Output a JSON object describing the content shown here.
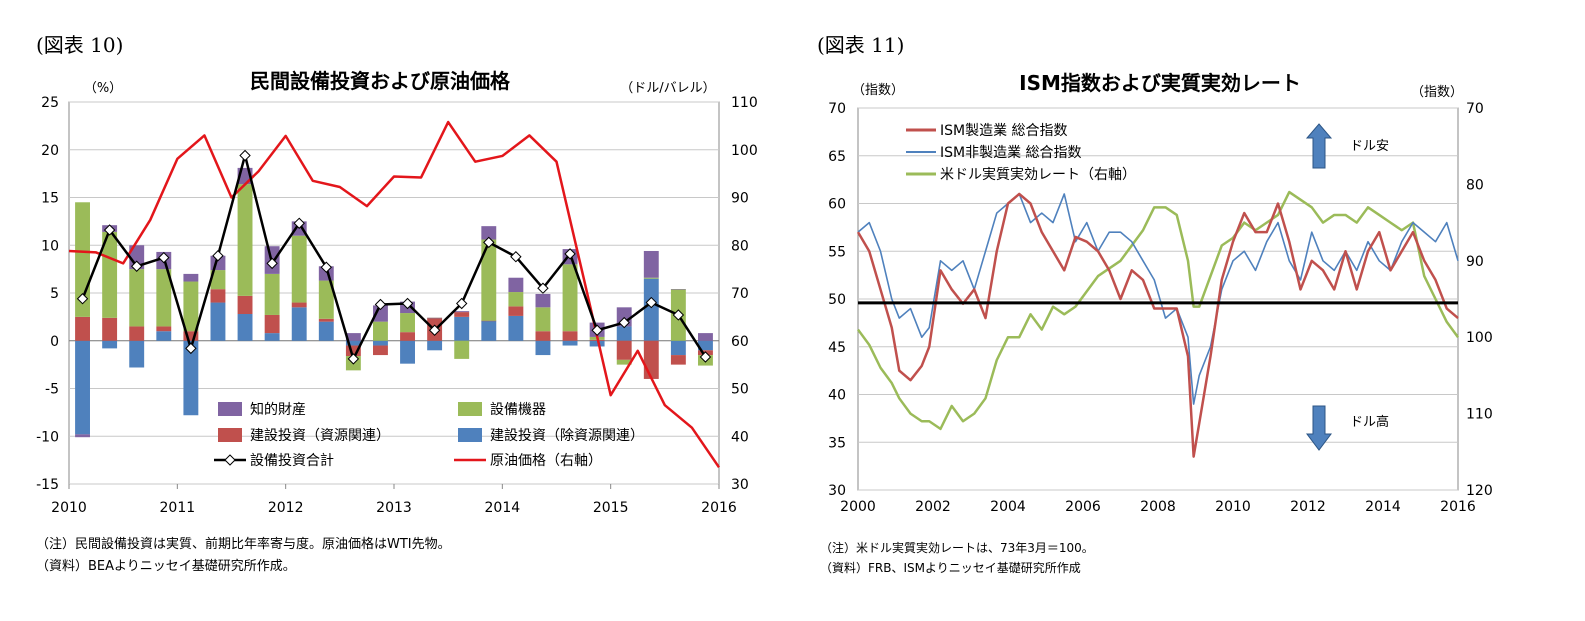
{
  "chart_data": [
    {
      "type": "bar",
      "figure_label": "(図表 10)",
      "title": "民間設備投資および原油価格",
      "ylabel_left": "（%）",
      "ylabel_right": "（ドル/バレル）",
      "ylim": [
        -15,
        25
      ],
      "y_ticks": [
        "25",
        "20",
        "15",
        "10",
        "5",
        "0",
        "-5",
        "-10",
        "-15"
      ],
      "y2lim": [
        30,
        110
      ],
      "y2_ticks": [
        "110",
        "100",
        "90",
        "80",
        "70",
        "60",
        "50",
        "40",
        "30"
      ],
      "x_ticks": [
        "2010",
        "2011",
        "2012",
        "2013",
        "2014",
        "2015",
        "2016"
      ],
      "categories": [
        "2010Q1",
        "2010Q2",
        "2010Q3",
        "2010Q4",
        "2011Q1",
        "2011Q2",
        "2011Q3",
        "2011Q4",
        "2012Q1",
        "2012Q2",
        "2012Q3",
        "2012Q4",
        "2013Q1",
        "2013Q2",
        "2013Q3",
        "2013Q4",
        "2014Q1",
        "2014Q2",
        "2014Q3",
        "2014Q4",
        "2015Q1",
        "2015Q2",
        "2015Q3",
        "2015Q4"
      ],
      "legend": {
        "intellectual": "知的財産",
        "equipment": "設備機器",
        "struct_res": "建設投資（資源関連）",
        "struct_ex": "建設投資（除資源関連）",
        "total": "設備投資合計",
        "oil": "原油価格（右軸）"
      },
      "colors": {
        "intellectual": "#8064a2",
        "equipment": "#9bbb59",
        "struct_res": "#c0504d",
        "struct_ex": "#4f81bd",
        "total": "#000000",
        "oil": "#e3161b"
      },
      "series": {
        "struct_ex": [
          -9.8,
          -0.8,
          -2.8,
          1.0,
          -7.8,
          4.0,
          2.8,
          0.8,
          3.5,
          2.0,
          -0.5,
          -0.5,
          -2.4,
          -1.0,
          2.5,
          2.1,
          2.6,
          -1.5,
          -0.5,
          -0.6,
          1.5,
          6.5,
          -1.5,
          -1.0
        ],
        "struct_res": [
          2.5,
          2.4,
          1.5,
          0.5,
          1.0,
          1.4,
          1.9,
          1.9,
          0.5,
          0.3,
          -1.1,
          -1.0,
          0.9,
          2.4,
          0.5,
          0.0,
          1.0,
          1.0,
          1.0,
          0.1,
          -2.0,
          -4.0,
          -1.0,
          -0.5
        ],
        "equipment": [
          12.0,
          9.0,
          6.0,
          6.0,
          5.2,
          2.0,
          11.7,
          4.3,
          7.0,
          4.0,
          -1.5,
          2.0,
          2.0,
          0.0,
          -1.9,
          8.5,
          1.5,
          2.5,
          7.0,
          0.3,
          -0.5,
          0.1,
          5.4,
          -1.1
        ],
        "intellectual": [
          -0.3,
          0.7,
          2.5,
          1.8,
          0.8,
          1.5,
          1.7,
          2.9,
          1.5,
          1.5,
          0.8,
          1.7,
          1.2,
          0.0,
          0.1,
          1.4,
          1.5,
          1.4,
          1.6,
          1.5,
          2.0,
          2.8,
          0.0,
          0.8
        ],
        "total": [
          4.4,
          11.6,
          7.8,
          8.7,
          -0.8,
          8.9,
          19.4,
          8.1,
          12.3,
          7.7,
          -1.9,
          3.8,
          3.9,
          1.1,
          3.9,
          10.3,
          8.8,
          5.5,
          9.1,
          1.1,
          1.9,
          4.0,
          2.7,
          -1.7
        ],
        "oil": [
          78.8,
          78.5,
          76.2,
          85.3,
          98.1,
          103.0,
          90.0,
          95.5,
          102.9,
          93.5,
          92.2,
          88.2,
          94.4,
          94.2,
          105.8,
          97.5,
          98.7,
          103.0,
          97.5,
          73.2,
          48.6,
          57.9,
          46.5,
          41.8,
          33.5
        ]
      }
    },
    {
      "type": "line",
      "figure_label": "(図表 11)",
      "title": "ISM指数および実質実効レート",
      "ylabel_left": "（指数）",
      "ylabel_right": "（指数）",
      "ylim": [
        30,
        70
      ],
      "y_ticks": [
        "70",
        "65",
        "60",
        "55",
        "50",
        "45",
        "40",
        "35",
        "30"
      ],
      "y2lim": [
        70,
        120
      ],
      "y2_inverted": true,
      "y2_ticks": [
        "70",
        "80",
        "90",
        "100",
        "110",
        "120"
      ],
      "xlim": [
        2000,
        2016
      ],
      "x_ticks": [
        "2000",
        "2002",
        "2004",
        "2006",
        "2008",
        "2010",
        "2012",
        "2014",
        "2016"
      ],
      "reference_line": 50,
      "annotations": {
        "up": "ドル安",
        "down": "ドル高"
      },
      "legend": [
        "ISM製造業 総合指数",
        "ISM非製造業 総合指数",
        "米ドル実質実効レート（右軸）"
      ],
      "colors": [
        "#c0504d",
        "#4f81bd",
        "#9bbb59"
      ],
      "series": [
        {
          "name": "ISM製造業 総合指数",
          "x": [
            2000.0,
            2000.3,
            2000.6,
            2000.9,
            2001.1,
            2001.4,
            2001.7,
            2001.9,
            2002.2,
            2002.5,
            2002.8,
            2003.1,
            2003.4,
            2003.7,
            2004.0,
            2004.3,
            2004.6,
            2004.9,
            2005.2,
            2005.5,
            2005.8,
            2006.1,
            2006.4,
            2006.7,
            2007.0,
            2007.3,
            2007.6,
            2007.9,
            2008.2,
            2008.5,
            2008.8,
            2008.95,
            2009.1,
            2009.4,
            2009.7,
            2010.0,
            2010.3,
            2010.6,
            2010.9,
            2011.2,
            2011.5,
            2011.8,
            2012.1,
            2012.4,
            2012.7,
            2013.0,
            2013.3,
            2013.6,
            2013.9,
            2014.2,
            2014.5,
            2014.8,
            2015.1,
            2015.4,
            2015.7,
            2016.0
          ],
          "values": [
            57,
            55,
            51,
            47,
            42.5,
            41.5,
            43,
            45,
            53,
            51,
            49.5,
            51,
            48,
            55,
            60,
            61,
            60,
            57,
            55,
            53,
            56.5,
            56,
            55,
            53,
            50,
            53,
            52,
            49,
            49,
            49,
            44,
            33.5,
            37,
            44,
            52,
            56,
            59,
            57,
            57,
            60,
            56,
            51,
            54,
            53,
            51,
            55,
            51,
            55,
            57,
            53,
            55,
            57,
            54,
            52,
            49,
            48
          ]
        },
        {
          "name": "ISM非製造業 総合指数",
          "x": [
            2000.0,
            2000.3,
            2000.6,
            2000.9,
            2001.1,
            2001.4,
            2001.7,
            2001.9,
            2002.2,
            2002.5,
            2002.8,
            2003.1,
            2003.4,
            2003.7,
            2004.0,
            2004.3,
            2004.6,
            2004.9,
            2005.2,
            2005.5,
            2005.8,
            2006.1,
            2006.4,
            2006.7,
            2007.0,
            2007.3,
            2007.6,
            2007.9,
            2008.2,
            2008.5,
            2008.8,
            2008.95,
            2009.1,
            2009.4,
            2009.7,
            2010.0,
            2010.3,
            2010.6,
            2010.9,
            2011.2,
            2011.5,
            2011.8,
            2012.1,
            2012.4,
            2012.7,
            2013.0,
            2013.3,
            2013.6,
            2013.9,
            2014.2,
            2014.5,
            2014.8,
            2015.1,
            2015.4,
            2015.7,
            2016.0
          ],
          "values": [
            57,
            58,
            55,
            50,
            48,
            49,
            46,
            47,
            54,
            53,
            54,
            51,
            55,
            59,
            60,
            61,
            58,
            59,
            58,
            61,
            56,
            58,
            55,
            57,
            57,
            56,
            54,
            52,
            48,
            49,
            46,
            39,
            42,
            45,
            51,
            54,
            55,
            53,
            56,
            58,
            54,
            52,
            57,
            54,
            53,
            55,
            53,
            56,
            54,
            53,
            56,
            58,
            57,
            56,
            58,
            54
          ]
        },
        {
          "name": "米ドル実質実効レート（右軸）",
          "x": [
            2000.0,
            2000.3,
            2000.6,
            2000.9,
            2001.1,
            2001.4,
            2001.7,
            2001.9,
            2002.2,
            2002.5,
            2002.8,
            2003.1,
            2003.4,
            2003.7,
            2004.0,
            2004.3,
            2004.6,
            2004.9,
            2005.2,
            2005.5,
            2005.8,
            2006.1,
            2006.4,
            2006.7,
            2007.0,
            2007.3,
            2007.6,
            2007.9,
            2008.2,
            2008.5,
            2008.8,
            2008.95,
            2009.1,
            2009.4,
            2009.7,
            2010.0,
            2010.3,
            2010.6,
            2010.9,
            2011.2,
            2011.5,
            2011.8,
            2012.1,
            2012.4,
            2012.7,
            2013.0,
            2013.3,
            2013.6,
            2013.9,
            2014.2,
            2014.5,
            2014.8,
            2015.1,
            2015.4,
            2015.7,
            2016.0
          ],
          "values": [
            99,
            101,
            104,
            106,
            108,
            110,
            111,
            111,
            112,
            109,
            111,
            110,
            108,
            103,
            100,
            100,
            97,
            99,
            96,
            97,
            96,
            94,
            92,
            91,
            90,
            88,
            86,
            83,
            83,
            84,
            90,
            96,
            96,
            92,
            88,
            87,
            85,
            86,
            85,
            84,
            81,
            82,
            83,
            85,
            84,
            84,
            85,
            83,
            84,
            85,
            86,
            85,
            92,
            95,
            98,
            100
          ]
        }
      ]
    }
  ],
  "notes": {
    "left_note1": "（注）民間設備投資は実質、前期比年率寄与度。原油価格はWTI先物。",
    "left_note2": "（資料）BEAよりニッセイ基礎研究所作成。",
    "right_note1": "（注）米ドル実質実効レートは、73年3月＝100。",
    "right_note2": "（資料）FRB、ISMよりニッセイ基礎研究所作成"
  }
}
